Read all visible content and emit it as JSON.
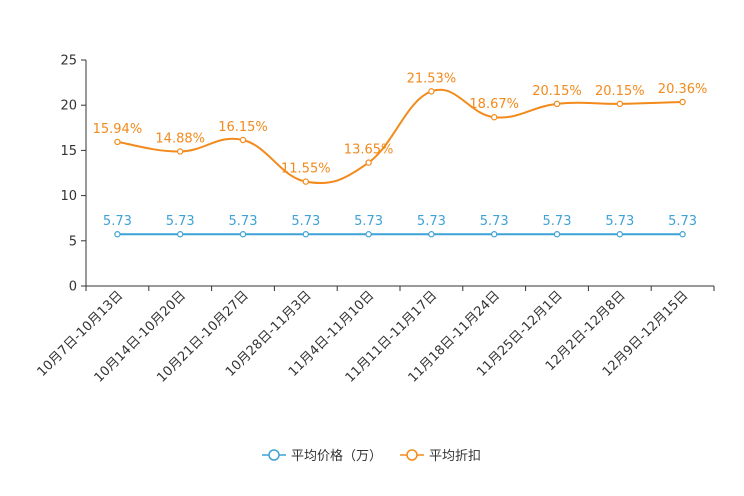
{
  "chart_data": {
    "type": "line",
    "categories": [
      "10月7日-10月13日",
      "10月14日-10月20日",
      "10月21日-10月27日",
      "10月28日-11月3日",
      "11月4日-11月10日",
      "11月11日-11月17日",
      "11月18日-11月24日",
      "11月25日-12月1日",
      "12月2日-12月8日",
      "12月9日-12月15日"
    ],
    "series": [
      {
        "name": "平均价格（万）",
        "color": "#3fa2d6",
        "values": [
          5.73,
          5.73,
          5.73,
          5.73,
          5.73,
          5.73,
          5.73,
          5.73,
          5.73,
          5.73
        ],
        "labels": [
          "5.73",
          "5.73",
          "5.73",
          "5.73",
          "5.73",
          "5.73",
          "5.73",
          "5.73",
          "5.73",
          "5.73"
        ]
      },
      {
        "name": "平均折扣",
        "color": "#f28a1c",
        "values": [
          15.94,
          14.88,
          16.15,
          11.55,
          13.65,
          21.53,
          18.67,
          20.15,
          20.15,
          20.36
        ],
        "labels": [
          "15.94%",
          "14.88%",
          "16.15%",
          "11.55%",
          "13.65%",
          "21.53%",
          "18.67%",
          "20.15%",
          "20.15%",
          "20.36%"
        ]
      }
    ],
    "yticks": [
      "0",
      "5",
      "10",
      "15",
      "20",
      "25"
    ],
    "ylim": [
      0,
      25
    ],
    "legend": "bottom-center"
  }
}
